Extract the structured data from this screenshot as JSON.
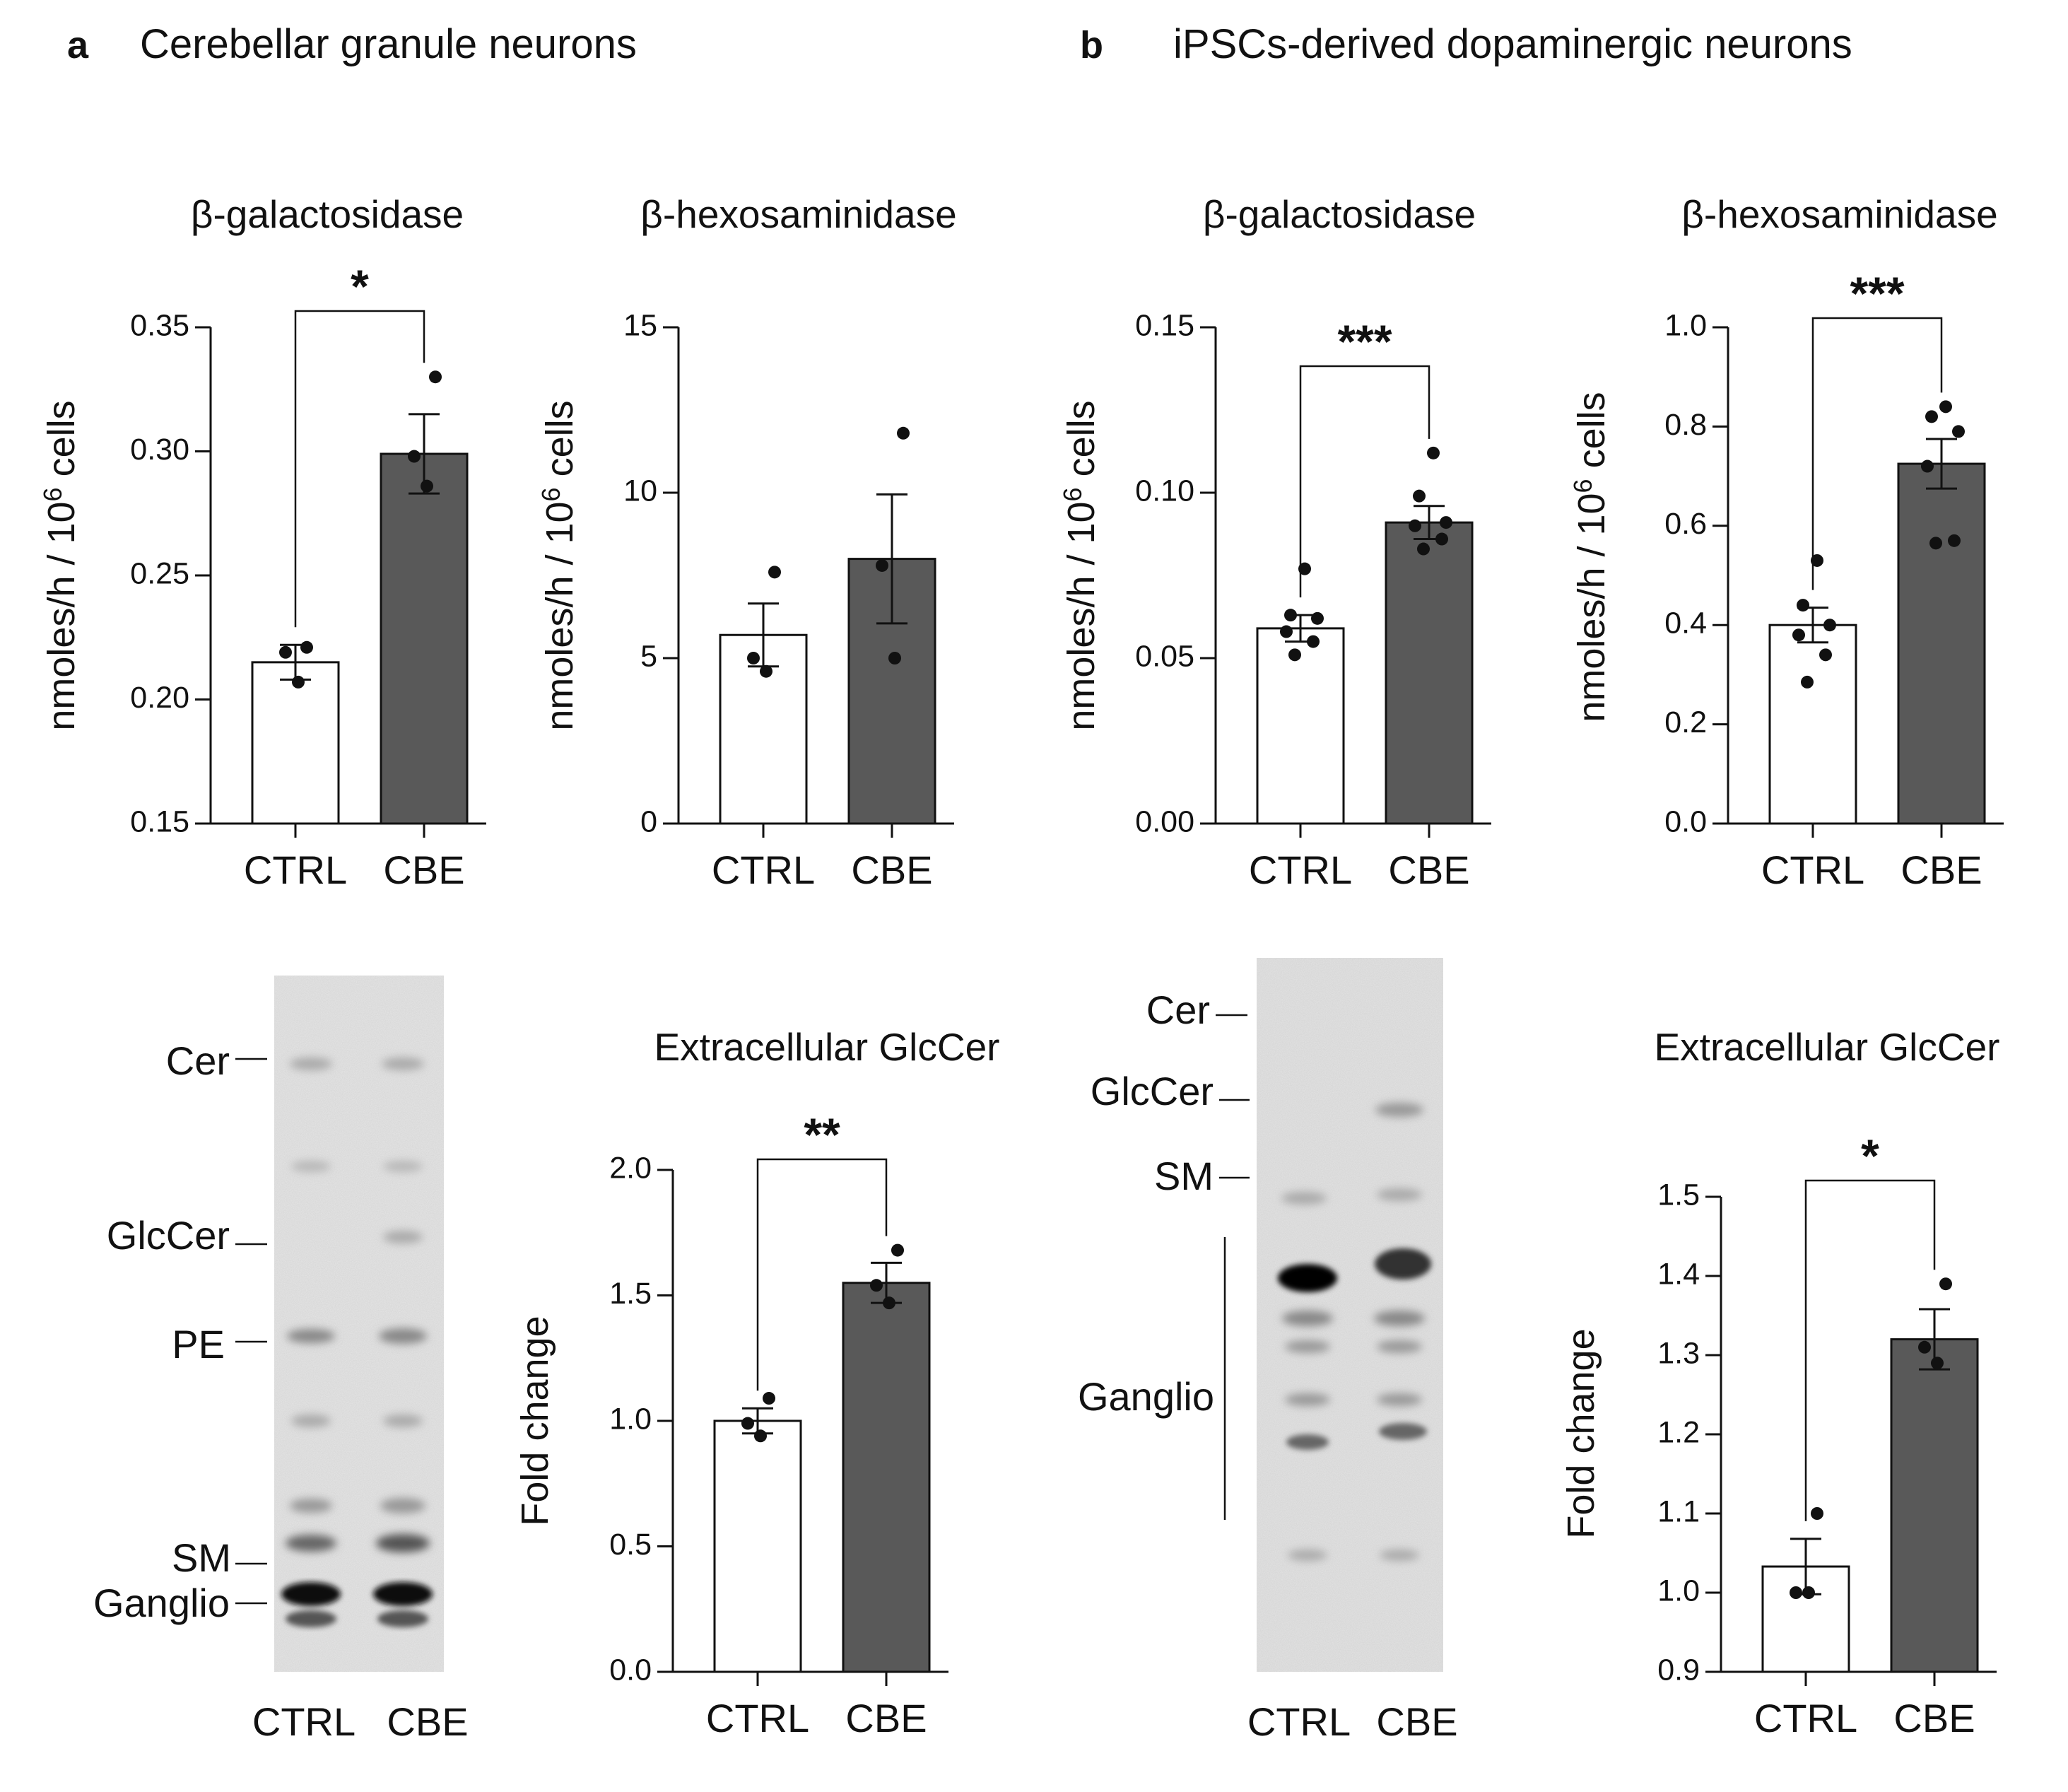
{
  "panels": {
    "a": {
      "letter": "a",
      "title": "Cerebellar granule neurons"
    },
    "b": {
      "letter": "b",
      "title": "iPSCs-derived dopaminergic neurons"
    }
  },
  "chart_data": [
    {
      "id": "a1",
      "type": "bar",
      "title": "β-galactosidase",
      "ylabel": "nmoles/h / 10^6 cells",
      "ylabel_parts": {
        "pre": "nmoles/h / 10",
        "sup": "6",
        "post": " cells"
      },
      "ylim": [
        0.15,
        0.35
      ],
      "ticks": [
        "0.15",
        "0.20",
        "0.25",
        "0.30",
        "0.35"
      ],
      "categories": [
        "CTRL",
        "CBE"
      ],
      "values": [
        0.215,
        0.299
      ],
      "errors": [
        0.007,
        0.016
      ],
      "points": [
        [
          0.207,
          0.219,
          0.221
        ],
        [
          0.286,
          0.298,
          0.33
        ]
      ],
      "significance": "*"
    },
    {
      "id": "a2",
      "type": "bar",
      "title": "β-hexosaminidase",
      "ylabel": "nmoles/h / 10^6 cells",
      "ylabel_parts": {
        "pre": "nmoles/h / 10",
        "sup": "6",
        "post": " cells"
      },
      "ylim": [
        0,
        15
      ],
      "ticks": [
        "0",
        "5",
        "10",
        "15"
      ],
      "categories": [
        "CTRL",
        "CBE"
      ],
      "values": [
        5.7,
        8.0
      ],
      "errors": [
        0.95,
        1.95
      ],
      "points": [
        [
          4.6,
          5.0,
          7.6
        ],
        [
          5.0,
          7.8,
          11.8
        ]
      ],
      "significance": ""
    },
    {
      "id": "b1",
      "type": "bar",
      "title": "β-galactosidase",
      "ylabel": "nmoles/h / 10^6 cells",
      "ylabel_parts": {
        "pre": "nmoles/h / 10",
        "sup": "6",
        "post": " cells"
      },
      "ylim": [
        0.0,
        0.15
      ],
      "ticks": [
        "0.00",
        "0.05",
        "0.10",
        "0.15"
      ],
      "categories": [
        "CTRL",
        "CBE"
      ],
      "values": [
        0.059,
        0.091
      ],
      "errors": [
        0.004,
        0.005
      ],
      "points": [
        [
          0.051,
          0.055,
          0.058,
          0.062,
          0.063,
          0.077
        ],
        [
          0.083,
          0.086,
          0.09,
          0.091,
          0.099,
          0.112
        ]
      ],
      "significance": "***"
    },
    {
      "id": "b2",
      "type": "bar",
      "title": "β-hexosaminidase",
      "ylabel": "nmoles/h / 10^6 cells",
      "ylabel_parts": {
        "pre": "nmoles/h / 10",
        "sup": "6",
        "post": " cells"
      },
      "ylim": [
        0.0,
        1.0
      ],
      "ticks": [
        "0.0",
        "0.2",
        "0.4",
        "0.6",
        "0.8",
        "1.0"
      ],
      "categories": [
        "CTRL",
        "CBE"
      ],
      "values": [
        0.4,
        0.725
      ],
      "errors": [
        0.035,
        0.05
      ],
      "points": [
        [
          0.285,
          0.34,
          0.38,
          0.4,
          0.44,
          0.53
        ],
        [
          0.565,
          0.57,
          0.72,
          0.79,
          0.82,
          0.84
        ]
      ],
      "significance": "***"
    },
    {
      "id": "a3",
      "type": "bar",
      "title": "Extracellular GlcCer",
      "ylabel": "Fold change",
      "ylabel_parts": {
        "pre": "Fold change",
        "sup": "",
        "post": ""
      },
      "ylim": [
        0.0,
        2.0
      ],
      "ticks": [
        "0.0",
        "0.5",
        "1.0",
        "1.5",
        "2.0"
      ],
      "categories": [
        "CTRL",
        "CBE"
      ],
      "values": [
        1.0,
        1.55
      ],
      "errors": [
        0.05,
        0.08
      ],
      "points": [
        [
          0.94,
          0.99,
          1.09
        ],
        [
          1.47,
          1.54,
          1.68
        ]
      ],
      "significance": "**"
    },
    {
      "id": "b3",
      "type": "bar",
      "title": "Extracellular GlcCer",
      "ylabel": "Fold change",
      "ylabel_parts": {
        "pre": "Fold change",
        "sup": "",
        "post": ""
      },
      "ylim": [
        0.9,
        1.5
      ],
      "ticks": [
        "0.9",
        "1.0",
        "1.1",
        "1.2",
        "1.3",
        "1.4",
        "1.5"
      ],
      "categories": [
        "CTRL",
        "CBE"
      ],
      "values": [
        1.033,
        1.32
      ],
      "errors": [
        0.035,
        0.038
      ],
      "points": [
        [
          1.0,
          1.0,
          1.1
        ],
        [
          1.29,
          1.31,
          1.39
        ]
      ],
      "significance": "*"
    }
  ],
  "tlc": {
    "a": {
      "bands": [
        "Cer",
        "GlcCer",
        "PE",
        "SM",
        "Ganglio"
      ],
      "lanes": [
        "CTRL",
        "CBE"
      ]
    },
    "b": {
      "bands": [
        "Cer",
        "GlcCer",
        "SM",
        "Ganglio"
      ],
      "lanes": [
        "CTRL",
        "CBE"
      ]
    }
  }
}
